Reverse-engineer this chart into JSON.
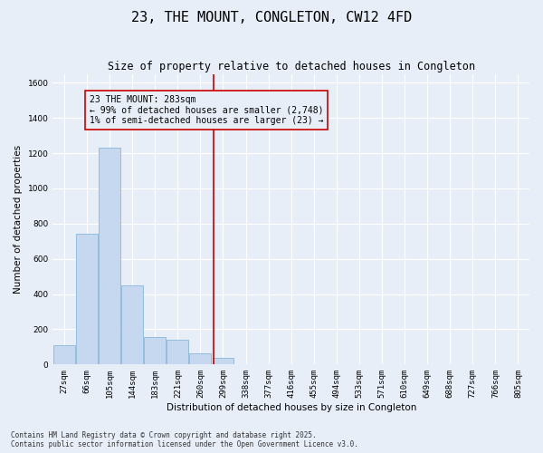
{
  "title": "23, THE MOUNT, CONGLETON, CW12 4FD",
  "subtitle": "Size of property relative to detached houses in Congleton",
  "xlabel": "Distribution of detached houses by size in Congleton",
  "ylabel": "Number of detached properties",
  "bar_color": "#c5d8f0",
  "bar_edge_color": "#7aafd4",
  "bg_color": "#e8eef8",
  "grid_color": "#ffffff",
  "vline_x": 7,
  "vline_color": "#cc0000",
  "annotation_text": "23 THE MOUNT: 283sqm\n← 99% of detached houses are smaller (2,748)\n1% of semi-detached houses are larger (23) →",
  "annotation_box_color": "#cc0000",
  "categories": [
    "27sqm",
    "66sqm",
    "105sqm",
    "144sqm",
    "183sqm",
    "221sqm",
    "260sqm",
    "299sqm",
    "338sqm",
    "377sqm",
    "416sqm",
    "455sqm",
    "494sqm",
    "533sqm",
    "571sqm",
    "610sqm",
    "649sqm",
    "688sqm",
    "727sqm",
    "766sqm",
    "805sqm"
  ],
  "values": [
    110,
    745,
    1230,
    450,
    155,
    140,
    65,
    40,
    0,
    0,
    0,
    0,
    0,
    0,
    0,
    0,
    0,
    0,
    0,
    0,
    0
  ],
  "ylim": [
    0,
    1650
  ],
  "yticks": [
    0,
    200,
    400,
    600,
    800,
    1000,
    1200,
    1400,
    1600
  ],
  "footer": "Contains HM Land Registry data © Crown copyright and database right 2025.\nContains public sector information licensed under the Open Government Licence v3.0.",
  "title_fontsize": 11,
  "subtitle_fontsize": 8.5,
  "axis_label_fontsize": 7.5,
  "tick_fontsize": 6.5,
  "annotation_fontsize": 7,
  "footer_fontsize": 5.5
}
